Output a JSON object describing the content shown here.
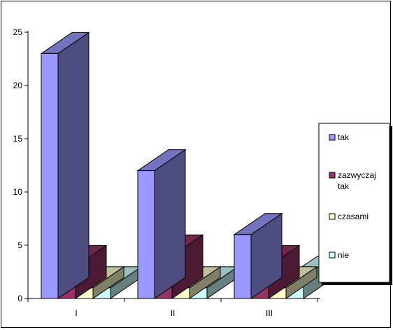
{
  "chart_data": {
    "type": "bar",
    "categories": [
      "I",
      "II",
      "III"
    ],
    "series": [
      {
        "name": "tak",
        "values": [
          23,
          12,
          6
        ],
        "color": "#9999ff"
      },
      {
        "name": "zazwyczaj tak",
        "values": [
          3,
          4,
          3
        ],
        "color": "#993366"
      },
      {
        "name": "czasami",
        "values": [
          1,
          1,
          1
        ],
        "color": "#ffffcc"
      },
      {
        "name": "nie",
        "values": [
          1,
          1,
          2
        ],
        "color": "#ccffff"
      }
    ],
    "y_ticks": [
      "0",
      "5",
      "10",
      "15",
      "20",
      "25"
    ],
    "ylim": [
      0,
      25
    ],
    "legend": {
      "position": "right",
      "labels": [
        [
          "tak"
        ],
        [
          "zazwyczaj",
          "tak"
        ],
        [
          "czasami"
        ],
        [
          "nie"
        ]
      ]
    },
    "grid": false,
    "style": "3d"
  }
}
